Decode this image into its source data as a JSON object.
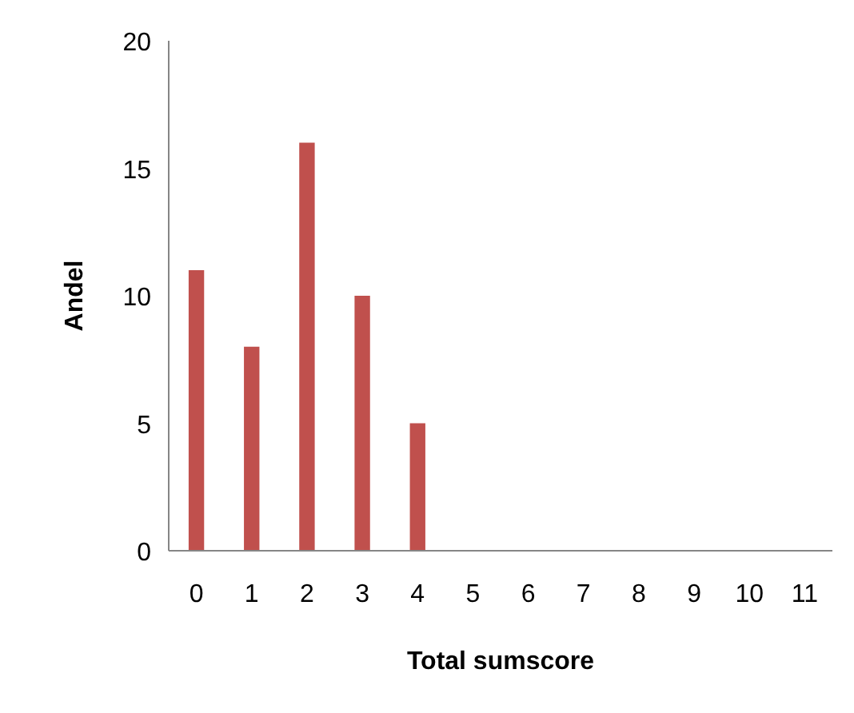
{
  "chart_data": {
    "type": "bar",
    "xlabel": "Total sumscore",
    "ylabel": "Andel",
    "categories": [
      "0",
      "1",
      "2",
      "3",
      "4",
      "5",
      "6",
      "7",
      "8",
      "9",
      "10",
      "11"
    ],
    "values": [
      11,
      8,
      16,
      10,
      5,
      0,
      0,
      0,
      0,
      0,
      0,
      0
    ],
    "color": "#c0504d",
    "ylim": [
      0,
      20
    ],
    "yticks": [
      0,
      5,
      10,
      15,
      20
    ],
    "grid": false
  }
}
